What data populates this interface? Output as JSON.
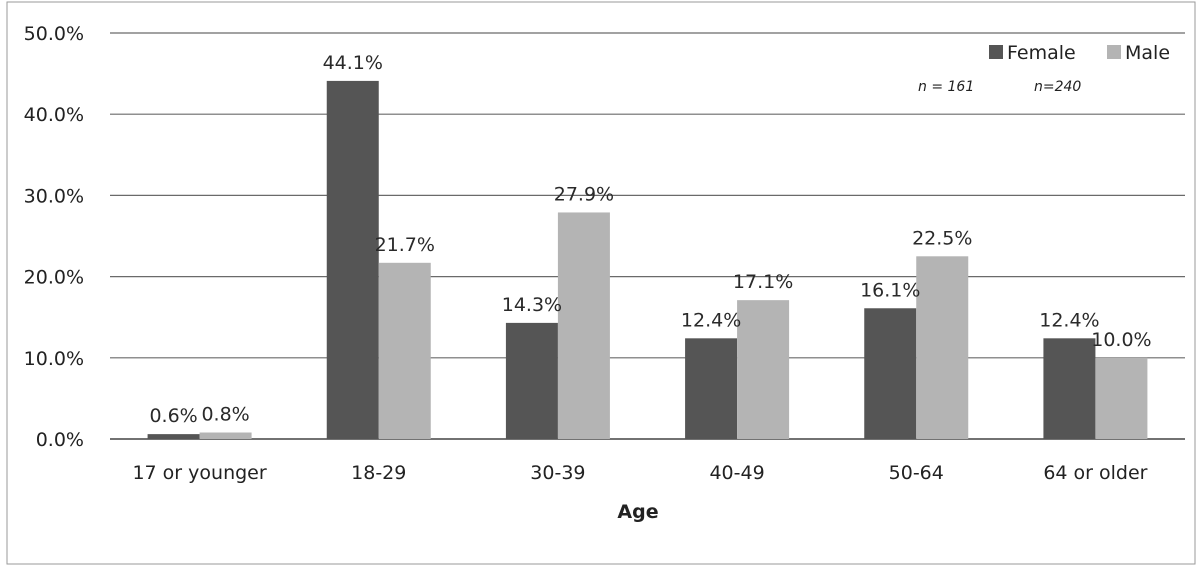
{
  "chart_data": {
    "type": "bar",
    "title": "",
    "xlabel": "Age",
    "ylabel": "",
    "categories": [
      "17 or younger",
      "18-29",
      "30-39",
      "40-49",
      "50-64",
      "64 or older"
    ],
    "series": [
      {
        "name": "Female",
        "color": "#555555",
        "values": [
          0.6,
          44.1,
          14.3,
          12.4,
          16.1,
          12.4
        ],
        "labels": [
          "0.6%",
          "44.1%",
          "14.3%",
          "12.4%",
          "16.1%",
          "12.4%"
        ]
      },
      {
        "name": "Male",
        "color": "#b4b4b4",
        "values": [
          0.8,
          21.7,
          27.9,
          17.1,
          22.5,
          10.0
        ],
        "labels": [
          "0.8%",
          "21.7%",
          "27.9%",
          "17.1%",
          "22.5%",
          "10.0%"
        ]
      }
    ],
    "ylim": [
      0,
      50
    ],
    "yticks": [
      0,
      10,
      20,
      30,
      40,
      50
    ],
    "ytick_labels": [
      "0.0%",
      "10.0%",
      "20.0%",
      "30.0%",
      "40.0%",
      "50.0%"
    ],
    "grid": true,
    "legend_position": "top-right",
    "annotations": [
      "n = 161",
      "n=240"
    ]
  }
}
